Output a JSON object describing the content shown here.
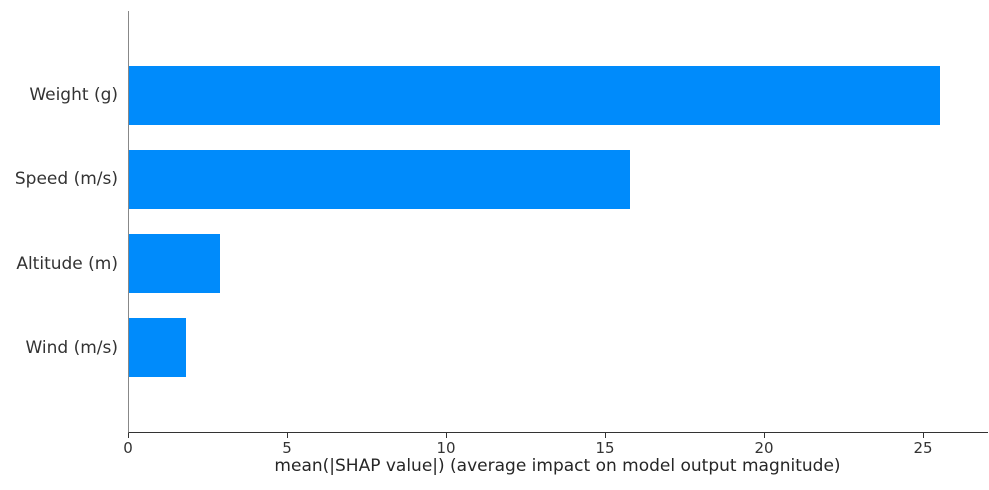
{
  "chart_data": {
    "type": "bar",
    "orientation": "horizontal",
    "title": "",
    "categories": [
      "Weight (g)",
      "Speed (m/s)",
      "Altitude (m)",
      "Wind (m/s)"
    ],
    "values": [
      25.5,
      15.75,
      2.85,
      1.78
    ],
    "xlabel": "mean(|SHAP value|) (average impact on model output magnitude)",
    "ylabel": "",
    "xticks": [
      0,
      5,
      10,
      15,
      20,
      25
    ],
    "xlim": [
      0,
      27
    ],
    "bar_height_fraction": 0.7,
    "grid": false,
    "legend": false,
    "colors": {
      "bar": "#008bfb",
      "bottom_spine": "#333333",
      "left_spine": "#888888",
      "tick_text": "#333333",
      "label_text": "#262626",
      "background": "#ffffff"
    }
  }
}
